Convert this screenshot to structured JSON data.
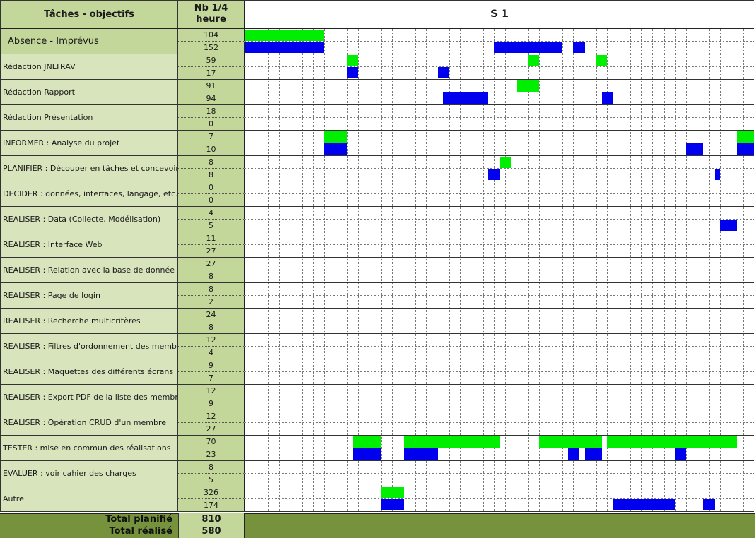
{
  "header": {
    "tasks_title": "Tâches - objectifs",
    "count_title_line1": "Nb 1/4",
    "count_title_line2": "heure",
    "week_label": "S 1"
  },
  "colors": {
    "planned": "#00ee00",
    "actual": "#0000ee",
    "label_bg": "#d8e4bc",
    "count_bg": "#c4d79b",
    "footer_bg": "#76923c"
  },
  "slots_total": 45,
  "rows": [
    {
      "label": "Absence - Imprévus",
      "planned": "104",
      "actual": "152",
      "green": [
        [
          0,
          7
        ]
      ],
      "blue": [
        [
          0,
          7
        ],
        [
          22,
          28
        ],
        [
          29,
          30
        ]
      ]
    },
    {
      "label": "Rédaction JNLTRAV",
      "planned": "59",
      "actual": "17",
      "green": [
        [
          9,
          10
        ],
        [
          25,
          26
        ],
        [
          31,
          32
        ]
      ],
      "blue": [
        [
          9,
          10
        ],
        [
          17,
          18
        ]
      ]
    },
    {
      "label": "Rédaction Rapport",
      "planned": "91",
      "actual": "94",
      "green": [
        [
          24,
          26
        ]
      ],
      "blue": [
        [
          17.5,
          21.5
        ],
        [
          31.5,
          32.5
        ]
      ]
    },
    {
      "label": "Rédaction Présentation",
      "planned": "18",
      "actual": "0",
      "green": [],
      "blue": []
    },
    {
      "label": "INFORMER : Analyse du projet",
      "planned": "7",
      "actual": "10",
      "green": [
        [
          7,
          9
        ],
        [
          43.5,
          45
        ]
      ],
      "blue": [
        [
          7,
          9
        ],
        [
          39,
          40.5
        ],
        [
          43.5,
          45
        ]
      ]
    },
    {
      "label": "PLANIFIER : Découper en tâches et concevoir",
      "planned": "8",
      "actual": "8",
      "green": [
        [
          22.5,
          23.5
        ]
      ],
      "blue": [
        [
          21.5,
          22.5
        ],
        [
          41.5,
          42
        ]
      ]
    },
    {
      "label": "DECIDER : données, interfaces, langage, etc.",
      "planned": "0",
      "actual": "0",
      "green": [],
      "blue": []
    },
    {
      "label": "REALISER : Data (Collecte, Modélisation)",
      "planned": "4",
      "actual": "5",
      "green": [],
      "blue": [
        [
          42,
          43.5
        ]
      ]
    },
    {
      "label": "REALISER : Interface Web",
      "planned": "11",
      "actual": "27",
      "green": [],
      "blue": []
    },
    {
      "label": "REALISER : Relation avec la base de donnée et",
      "planned": "27",
      "actual": "8",
      "green": [],
      "blue": []
    },
    {
      "label": "REALISER : Page de login",
      "planned": "8",
      "actual": "2",
      "green": [],
      "blue": []
    },
    {
      "label": "REALISER : Recherche multicritères",
      "planned": "24",
      "actual": "8",
      "green": [],
      "blue": []
    },
    {
      "label": "REALISER : Filtres d'ordonnement des membres",
      "planned": "12",
      "actual": "4",
      "green": [],
      "blue": []
    },
    {
      "label": "REALISER : Maquettes des différents écrans",
      "planned": "9",
      "actual": "7",
      "green": [],
      "blue": []
    },
    {
      "label": "REALISER : Export PDF de la liste des membres",
      "planned": "12",
      "actual": "9",
      "green": [],
      "blue": []
    },
    {
      "label": "REALISER : Opération CRUD d'un membre",
      "planned": "12",
      "actual": "27",
      "green": [],
      "blue": []
    },
    {
      "label": "TESTER : mise en commun des réalisations",
      "planned": "70",
      "actual": "23",
      "green": [
        [
          9.5,
          12
        ],
        [
          14,
          22.5
        ],
        [
          26,
          31.5
        ],
        [
          32,
          43.5
        ]
      ],
      "blue": [
        [
          9.5,
          12
        ],
        [
          14,
          17
        ],
        [
          28.5,
          29.5
        ],
        [
          30,
          31.5
        ],
        [
          38,
          39
        ]
      ]
    },
    {
      "label": "EVALUER : voir cahier des charges",
      "planned": "8",
      "actual": "5",
      "green": [],
      "blue": []
    },
    {
      "label": "Autre",
      "planned": "326",
      "actual": "174",
      "green": [
        [
          12,
          14
        ]
      ],
      "blue": [
        [
          12,
          14
        ],
        [
          32.5,
          38
        ],
        [
          40.5,
          41.5
        ]
      ]
    }
  ],
  "footer": {
    "total_planned_label": "Total planifié",
    "total_planned_value": "810",
    "total_actual_label": "Total réalisé",
    "total_actual_value": "580"
  }
}
